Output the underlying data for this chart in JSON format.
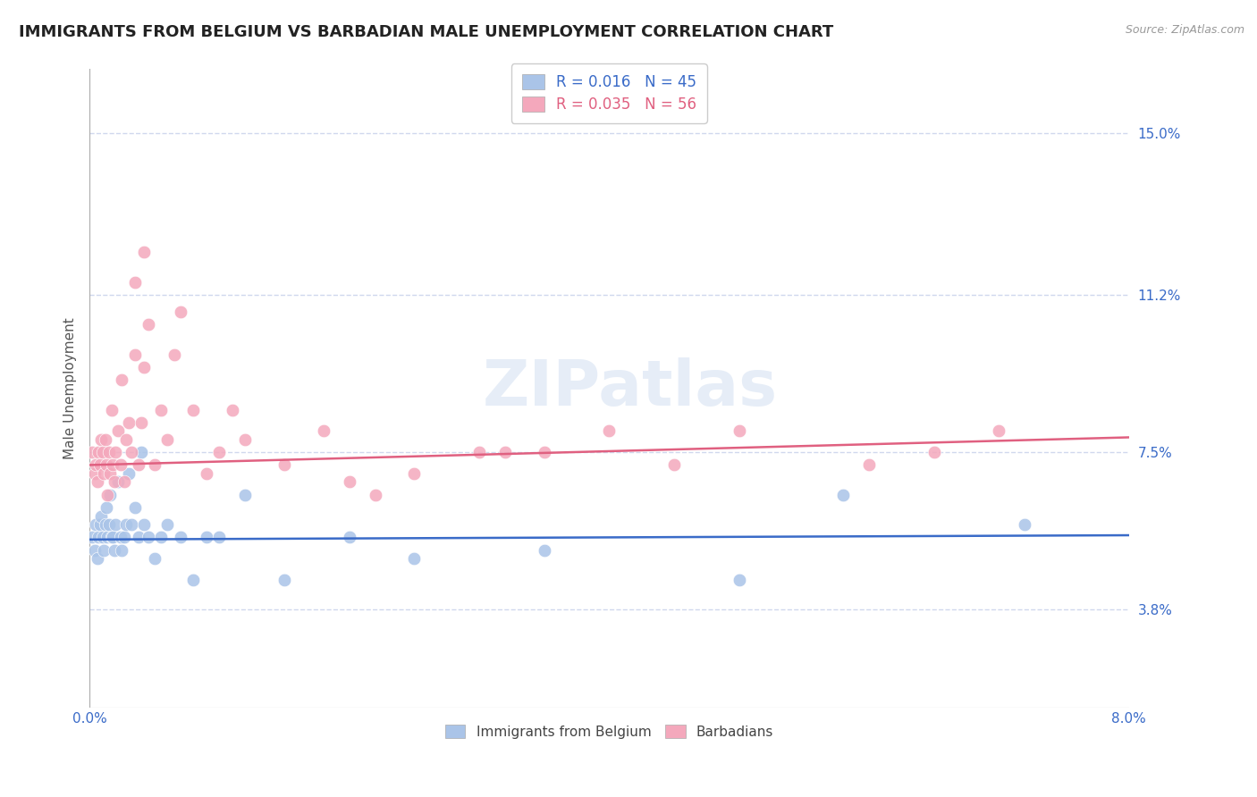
{
  "title": "IMMIGRANTS FROM BELGIUM VS BARBADIAN MALE UNEMPLOYMENT CORRELATION CHART",
  "source": "Source: ZipAtlas.com",
  "ylabel": "Male Unemployment",
  "yticks": [
    3.8,
    7.5,
    11.2,
    15.0
  ],
  "xlim": [
    0.0,
    8.0
  ],
  "ylim": [
    1.5,
    16.5
  ],
  "series1_label": "Immigrants from Belgium",
  "series1_color": "#aac4e8",
  "series1_R": "0.016",
  "series1_N": "45",
  "series2_label": "Barbadians",
  "series2_color": "#f4a8bc",
  "series2_R": "0.035",
  "series2_N": "56",
  "background_color": "#ffffff",
  "grid_color": "#d0d8ee",
  "series1_x": [
    0.02,
    0.04,
    0.05,
    0.06,
    0.07,
    0.08,
    0.09,
    0.1,
    0.11,
    0.12,
    0.13,
    0.14,
    0.15,
    0.16,
    0.17,
    0.18,
    0.19,
    0.2,
    0.22,
    0.24,
    0.25,
    0.27,
    0.28,
    0.3,
    0.32,
    0.35,
    0.38,
    0.4,
    0.42,
    0.45,
    0.5,
    0.55,
    0.6,
    0.7,
    0.8,
    0.9,
    1.0,
    1.2,
    1.5,
    2.0,
    2.5,
    3.5,
    5.0,
    5.8,
    7.2
  ],
  "series1_y": [
    5.5,
    5.2,
    5.8,
    5.0,
    5.5,
    5.8,
    6.0,
    5.5,
    5.2,
    5.8,
    6.2,
    5.5,
    5.8,
    6.5,
    5.5,
    5.5,
    5.2,
    5.8,
    6.8,
    5.5,
    5.2,
    5.5,
    5.8,
    7.0,
    5.8,
    6.2,
    5.5,
    7.5,
    5.8,
    5.5,
    5.0,
    5.5,
    5.8,
    5.5,
    4.5,
    5.5,
    5.5,
    6.5,
    4.5,
    5.5,
    5.0,
    5.2,
    4.5,
    6.5,
    5.8
  ],
  "series2_x": [
    0.02,
    0.04,
    0.05,
    0.06,
    0.07,
    0.08,
    0.09,
    0.1,
    0.11,
    0.12,
    0.13,
    0.14,
    0.15,
    0.16,
    0.17,
    0.18,
    0.19,
    0.2,
    0.22,
    0.24,
    0.25,
    0.27,
    0.28,
    0.3,
    0.32,
    0.35,
    0.38,
    0.4,
    0.42,
    0.45,
    0.5,
    0.55,
    0.6,
    0.65,
    0.7,
    0.8,
    0.9,
    1.0,
    1.1,
    1.2,
    1.5,
    1.8,
    2.0,
    2.5,
    3.0,
    3.5,
    4.0,
    4.5,
    5.0,
    6.0,
    6.5,
    7.0,
    3.2,
    2.2,
    0.35,
    0.42
  ],
  "series2_y": [
    7.5,
    7.0,
    7.2,
    6.8,
    7.5,
    7.2,
    7.8,
    7.5,
    7.0,
    7.8,
    7.2,
    6.5,
    7.5,
    7.0,
    8.5,
    7.2,
    6.8,
    7.5,
    8.0,
    7.2,
    9.2,
    6.8,
    7.8,
    8.2,
    7.5,
    9.8,
    7.2,
    8.2,
    9.5,
    10.5,
    7.2,
    8.5,
    7.8,
    9.8,
    10.8,
    8.5,
    7.0,
    7.5,
    8.5,
    7.8,
    7.2,
    8.0,
    6.8,
    7.0,
    7.5,
    7.5,
    8.0,
    7.2,
    8.0,
    7.2,
    7.5,
    8.0,
    7.5,
    6.5,
    11.5,
    12.2
  ],
  "series1_trendline": [
    5.45,
    5.55
  ],
  "series2_trendline": [
    7.2,
    7.85
  ],
  "title_fontsize": 13,
  "axis_label_fontsize": 11,
  "tick_fontsize": 11,
  "dot_size": 110
}
